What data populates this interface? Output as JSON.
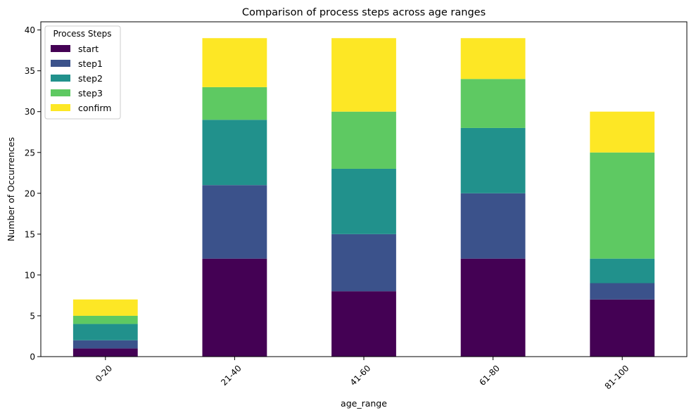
{
  "chart_data": {
    "type": "bar",
    "stacked": true,
    "title": "Comparison of process steps across age ranges",
    "xlabel": "age_range",
    "ylabel": "Number of Occurrences",
    "ylim": [
      0,
      41
    ],
    "yticks": [
      0,
      5,
      10,
      15,
      20,
      25,
      30,
      35,
      40
    ],
    "categories": [
      "0-20",
      "21-40",
      "41-60",
      "61-80",
      "81-100"
    ],
    "legend": {
      "title": "Process Steps",
      "placement": "top-left"
    },
    "grid": false,
    "series": [
      {
        "name": "start",
        "color": "#440154",
        "values": [
          1,
          12,
          8,
          12,
          7
        ]
      },
      {
        "name": "step1",
        "color": "#3b528b",
        "values": [
          1,
          9,
          7,
          8,
          2
        ]
      },
      {
        "name": "step2",
        "color": "#21918c",
        "values": [
          2,
          8,
          8,
          8,
          3
        ]
      },
      {
        "name": "step3",
        "color": "#5ec962",
        "values": [
          1,
          4,
          7,
          6,
          13
        ]
      },
      {
        "name": "confirm",
        "color": "#fde725",
        "values": [
          2,
          6,
          9,
          5,
          5
        ]
      }
    ]
  }
}
